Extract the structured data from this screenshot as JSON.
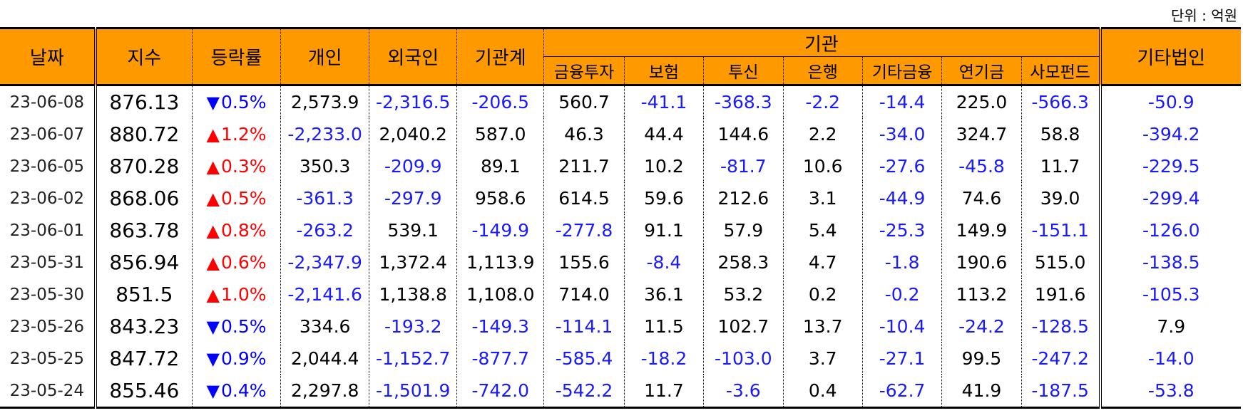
{
  "unit_label": "단위 : 억원",
  "headers": {
    "date": "날짜",
    "index": "지수",
    "change": "등락률",
    "individual": "개인",
    "foreign": "외국인",
    "inst_total": "기관계",
    "institution": "기관",
    "sub": [
      "금융투자",
      "보험",
      "투신",
      "은행",
      "기타금융",
      "연기금",
      "사모펀드"
    ],
    "other_corp": "기타법인"
  },
  "colors": {
    "header_bg": "#ff9900",
    "negative": "#1a1aff",
    "up": "#ff0000",
    "down": "#0000ff"
  },
  "rows": [
    {
      "date": "23-06-08",
      "index": "876.13",
      "dir": "down",
      "change": "0.5%",
      "individual": "2,573.9",
      "foreign": "-2,316.5",
      "inst_total": "-206.5",
      "fin_invest": "560.7",
      "insurance": "-41.1",
      "trust": "-368.3",
      "bank": "-2.2",
      "other_fin": "-14.4",
      "pension": "225.0",
      "pef": "-566.3",
      "other_corp": "-50.9"
    },
    {
      "date": "23-06-07",
      "index": "880.72",
      "dir": "up",
      "change": "1.2%",
      "individual": "-2,233.0",
      "foreign": "2,040.2",
      "inst_total": "587.0",
      "fin_invest": "46.3",
      "insurance": "44.4",
      "trust": "144.6",
      "bank": "2.2",
      "other_fin": "-34.0",
      "pension": "324.7",
      "pef": "58.8",
      "other_corp": "-394.2"
    },
    {
      "date": "23-06-05",
      "index": "870.28",
      "dir": "up",
      "change": "0.3%",
      "individual": "350.3",
      "foreign": "-209.9",
      "inst_total": "89.1",
      "fin_invest": "211.7",
      "insurance": "10.2",
      "trust": "-81.7",
      "bank": "10.6",
      "other_fin": "-27.6",
      "pension": "-45.8",
      "pef": "11.7",
      "other_corp": "-229.5"
    },
    {
      "date": "23-06-02",
      "index": "868.06",
      "dir": "up",
      "change": "0.5%",
      "individual": "-361.3",
      "foreign": "-297.9",
      "inst_total": "958.6",
      "fin_invest": "614.5",
      "insurance": "59.6",
      "trust": "212.6",
      "bank": "3.1",
      "other_fin": "-44.9",
      "pension": "74.6",
      "pef": "39.0",
      "other_corp": "-299.4"
    },
    {
      "date": "23-06-01",
      "index": "863.78",
      "dir": "up",
      "change": "0.8%",
      "individual": "-263.2",
      "foreign": "539.1",
      "inst_total": "-149.9",
      "fin_invest": "-277.8",
      "insurance": "91.1",
      "trust": "57.9",
      "bank": "5.4",
      "other_fin": "-25.3",
      "pension": "149.9",
      "pef": "-151.1",
      "other_corp": "-126.0"
    },
    {
      "date": "23-05-31",
      "index": "856.94",
      "dir": "up",
      "change": "0.6%",
      "individual": "-2,347.9",
      "foreign": "1,372.4",
      "inst_total": "1,113.9",
      "fin_invest": "155.6",
      "insurance": "-8.4",
      "trust": "258.3",
      "bank": "4.7",
      "other_fin": "-1.8",
      "pension": "190.6",
      "pef": "515.0",
      "other_corp": "-138.5"
    },
    {
      "date": "23-05-30",
      "index": "851.5",
      "dir": "up",
      "change": "1.0%",
      "individual": "-2,141.6",
      "foreign": "1,138.8",
      "inst_total": "1,108.0",
      "fin_invest": "714.0",
      "insurance": "36.1",
      "trust": "53.2",
      "bank": "0.2",
      "other_fin": "-0.2",
      "pension": "113.2",
      "pef": "191.6",
      "other_corp": "-105.3"
    },
    {
      "date": "23-05-26",
      "index": "843.23",
      "dir": "down",
      "change": "0.5%",
      "individual": "334.6",
      "foreign": "-193.2",
      "inst_total": "-149.3",
      "fin_invest": "-114.1",
      "insurance": "11.5",
      "trust": "102.7",
      "bank": "13.7",
      "other_fin": "-10.4",
      "pension": "-24.2",
      "pef": "-128.5",
      "other_corp": "7.9"
    },
    {
      "date": "23-05-25",
      "index": "847.72",
      "dir": "down",
      "change": "0.9%",
      "individual": "2,044.4",
      "foreign": "-1,152.7",
      "inst_total": "-877.7",
      "fin_invest": "-585.4",
      "insurance": "-18.2",
      "trust": "-103.0",
      "bank": "3.7",
      "other_fin": "-27.1",
      "pension": "99.5",
      "pef": "-247.2",
      "other_corp": "-14.0"
    },
    {
      "date": "23-05-24",
      "index": "855.46",
      "dir": "down",
      "change": "0.4%",
      "individual": "2,297.8",
      "foreign": "-1,501.9",
      "inst_total": "-742.0",
      "fin_invest": "-542.2",
      "insurance": "11.7",
      "trust": "-3.6",
      "bank": "0.4",
      "other_fin": "-62.7",
      "pension": "41.9",
      "pef": "-187.5",
      "other_corp": "-53.8"
    }
  ]
}
